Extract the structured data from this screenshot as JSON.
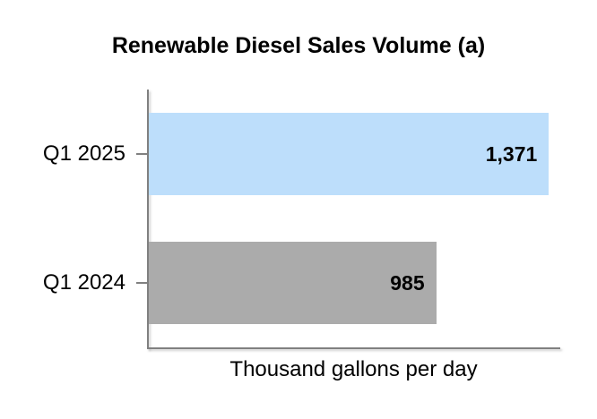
{
  "chart": {
    "title": "Renewable Diesel Sales Volume (a)",
    "xlabel": "Thousand gallons per day"
  },
  "chart_data": {
    "type": "bar",
    "orientation": "horizontal",
    "title": "Renewable Diesel Sales Volume (a)",
    "xlabel": "Thousand gallons per day",
    "ylabel": "",
    "categories": [
      "Q1 2025",
      "Q1 2024"
    ],
    "values": [
      1371,
      985
    ],
    "value_labels": [
      "1,371",
      "985"
    ],
    "xlim": [
      0,
      1410
    ],
    "grid": false,
    "legend": false,
    "bar_colors": [
      "#BDDEFB",
      "#ABABAB"
    ],
    "axis_color": "#808080",
    "text_color": "#000000",
    "background_color": "#FFFFFF"
  }
}
